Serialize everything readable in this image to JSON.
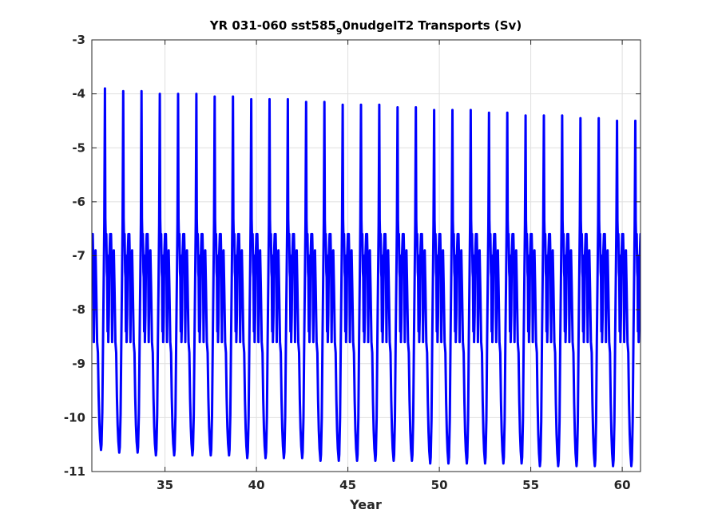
{
  "chart_data": {
    "type": "line",
    "title": {
      "prefix": "YR 031-060 sst585",
      "subscript": "9",
      "suffix": "0nudgeIT2 Transports (Sv)"
    },
    "xlabel": "Year",
    "ylabel": "",
    "xlim": [
      31,
      61
    ],
    "ylim": [
      -11,
      -3
    ],
    "xticks": [
      35,
      40,
      45,
      50,
      55,
      60
    ],
    "yticks": [
      -3,
      -4,
      -5,
      -6,
      -7,
      -8,
      -9,
      -10,
      -11
    ],
    "grid": true,
    "series": [
      {
        "color": "#0000ff",
        "cycle": {
          "start_year": 31,
          "period_years": 1,
          "phase_shape": [
            [
              0.0,
              -6.6
            ],
            [
              0.02,
              -6.7
            ],
            [
              0.05,
              -6.6
            ],
            [
              0.08,
              -7.1
            ],
            [
              0.11,
              -8.6
            ],
            [
              0.14,
              -7.5
            ],
            [
              0.17,
              -7.4
            ],
            [
              0.2,
              -6.9
            ],
            [
              0.24,
              -7.6
            ],
            [
              0.29,
              -8.6
            ],
            [
              0.33,
              -8.8
            ],
            [
              0.37,
              -9.6
            ],
            [
              0.41,
              -10.1
            ],
            [
              0.45,
              -10.4
            ],
            [
              0.5,
              -10.6
            ],
            [
              0.53,
              -10.5
            ],
            [
              0.57,
              -9.9
            ],
            [
              0.61,
              -8.6
            ],
            [
              0.65,
              -7.4
            ],
            [
              0.68,
              -6.4
            ],
            [
              0.715,
              -3.9
            ],
            [
              0.74,
              -6.3
            ],
            [
              0.76,
              -6.7
            ],
            [
              0.79,
              -6.6
            ],
            [
              0.82,
              -7.3
            ],
            [
              0.84,
              -7.4
            ],
            [
              0.86,
              -8.4
            ],
            [
              0.88,
              -7.0
            ],
            [
              0.9,
              -8.6
            ],
            [
              0.93,
              -8.1
            ],
            [
              0.96,
              -7.0
            ],
            [
              1.0,
              -6.6
            ]
          ],
          "peaks": [
            -3.9,
            -3.95,
            -3.95,
            -4.0,
            -4.0,
            -4.0,
            -4.05,
            -4.05,
            -4.1,
            -4.1,
            -4.1,
            -4.15,
            -4.15,
            -4.2,
            -4.2,
            -4.2,
            -4.25,
            -4.25,
            -4.3,
            -4.3,
            -4.3,
            -4.35,
            -4.35,
            -4.4,
            -4.4,
            -4.4,
            -4.45,
            -4.45,
            -4.5,
            -4.5
          ],
          "troughs": [
            -10.6,
            -10.65,
            -10.65,
            -10.7,
            -10.7,
            -10.7,
            -10.7,
            -10.7,
            -10.75,
            -10.75,
            -10.75,
            -10.75,
            -10.8,
            -10.8,
            -10.8,
            -10.8,
            -10.8,
            -10.8,
            -10.85,
            -10.85,
            -10.85,
            -10.85,
            -10.85,
            -10.85,
            -10.9,
            -10.9,
            -10.9,
            -10.9,
            -10.9,
            -10.9
          ]
        }
      }
    ]
  }
}
